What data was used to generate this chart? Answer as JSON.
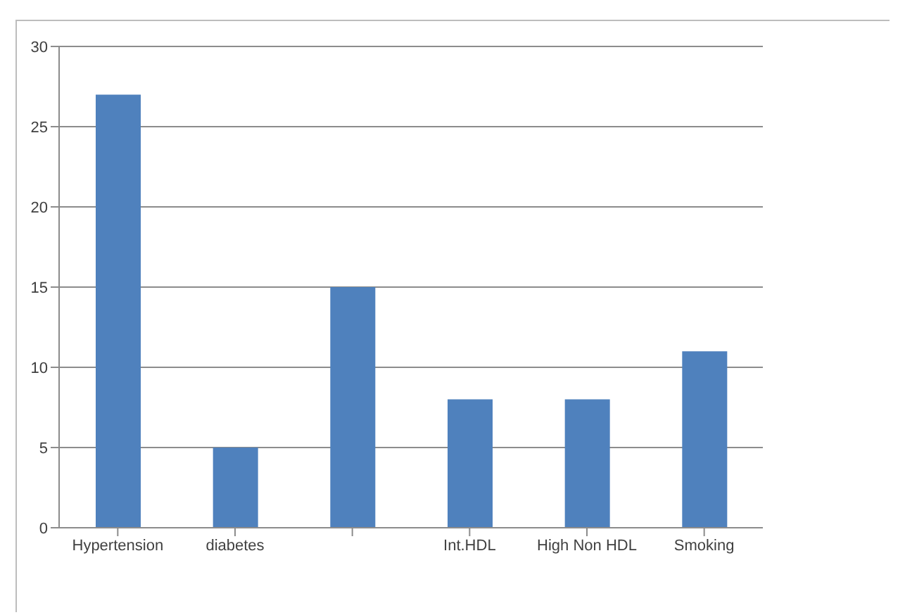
{
  "chart_data": {
    "type": "bar",
    "categories": [
      "Hypertension",
      "diabetes",
      null,
      "Int.HDL",
      "High Non HDL",
      "Smoking"
    ],
    "values": [
      27,
      5,
      15,
      8,
      8,
      11
    ],
    "color": "#4f81bd",
    "ylim": [
      0,
      30
    ],
    "yticks": [
      0,
      5,
      10,
      15,
      20,
      25,
      30
    ],
    "grid": "y",
    "legend": false
  }
}
